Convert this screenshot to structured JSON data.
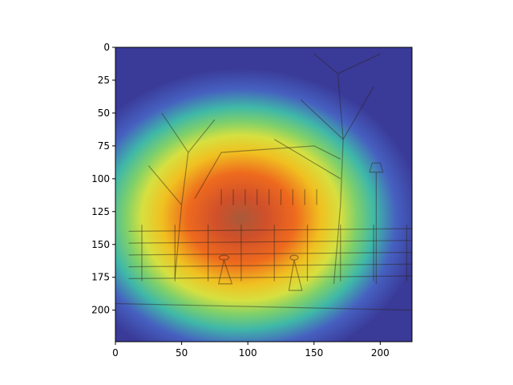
{
  "chart_data": {
    "type": "heatmap",
    "title": "",
    "xlabel": "",
    "ylabel": "",
    "xlim": [
      0,
      224
    ],
    "ylim": [
      224,
      0
    ],
    "y_inverted": true,
    "grid": false,
    "colormap": "jet",
    "overlay": "heatmap blended over a sketch of a tree-lined street scene",
    "xticks": [
      0,
      50,
      100,
      150,
      200
    ],
    "yticks": [
      0,
      25,
      50,
      75,
      100,
      125,
      150,
      175,
      200
    ],
    "xtick_labels": [
      "0",
      "50",
      "100",
      "150",
      "200"
    ],
    "ytick_labels": [
      "0",
      "25",
      "50",
      "75",
      "100",
      "125",
      "150",
      "175",
      "200"
    ],
    "hotspot": {
      "x": 95,
      "y": 130,
      "sigma_x": 62,
      "sigma_y": 52
    }
  }
}
